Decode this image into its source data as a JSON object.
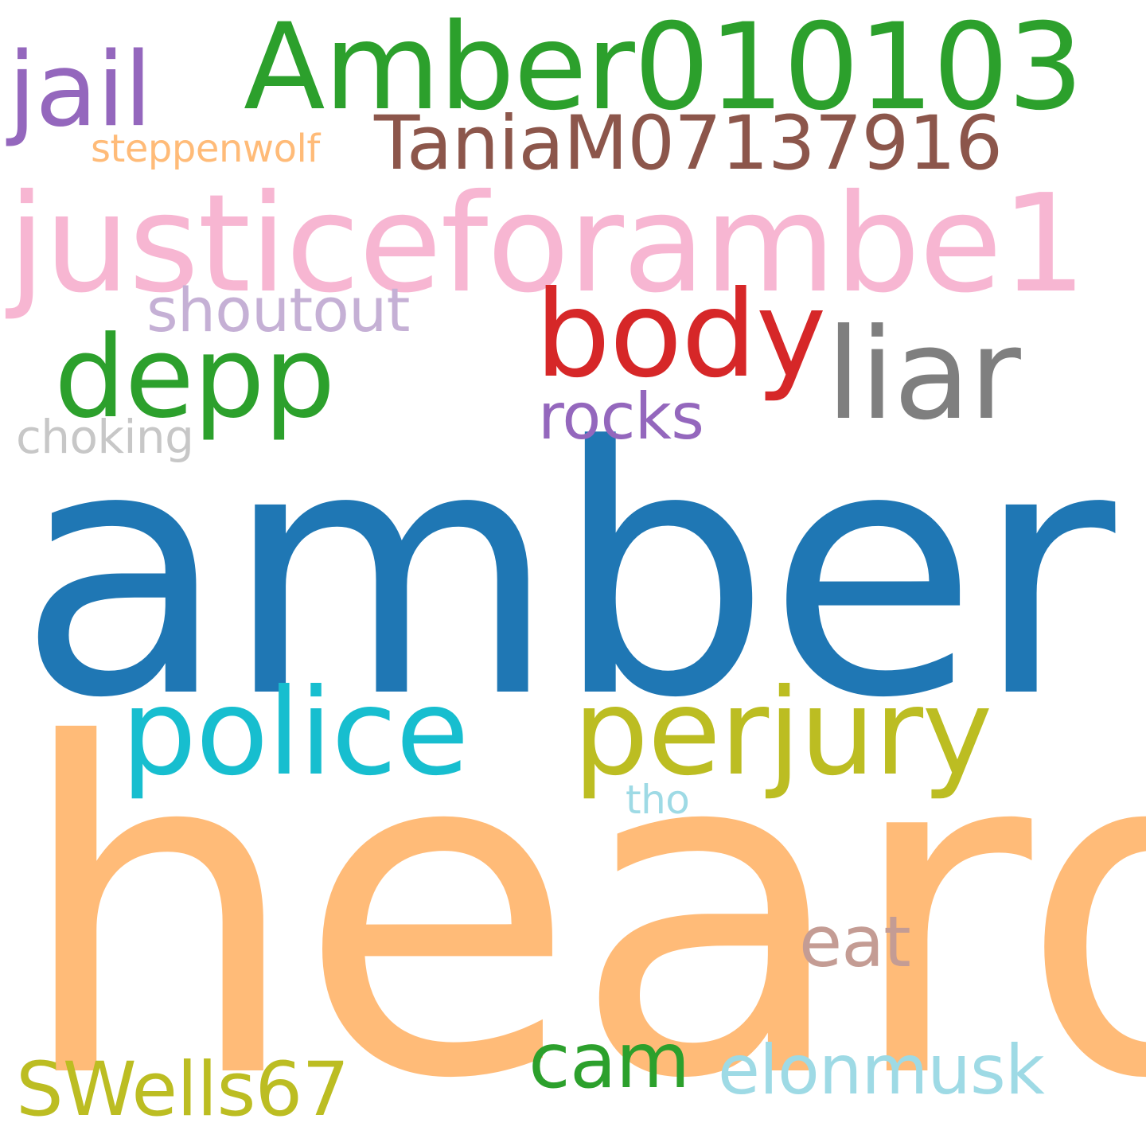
{
  "words": [
    {
      "text": "amber",
      "color": "#1f77b4"
    },
    {
      "text": "heard",
      "color": "#ffbb78"
    },
    {
      "text": "Amber010103",
      "color": "#2ca02c"
    },
    {
      "text": "justiceforambe1",
      "color": "#f7b6d2"
    },
    {
      "text": "body",
      "color": "#d62728"
    },
    {
      "text": "depp",
      "color": "#2ca02c"
    },
    {
      "text": "liar",
      "color": "#7f7f7f"
    },
    {
      "text": "police",
      "color": "#17becf"
    },
    {
      "text": "perjury",
      "color": "#bcbd22"
    },
    {
      "text": "jail",
      "color": "#9467bd"
    },
    {
      "text": "TaniaM07137916",
      "color": "#8c564b"
    },
    {
      "text": "cam",
      "color": "#2ca02c"
    },
    {
      "text": "SWells67",
      "color": "#bcbd22"
    },
    {
      "text": "elonmusk",
      "color": "#9edae5"
    },
    {
      "text": "eat",
      "color": "#c49c94"
    },
    {
      "text": "shoutout",
      "color": "#c5b0d5"
    },
    {
      "text": "rocks",
      "color": "#9467bd"
    },
    {
      "text": "choking",
      "color": "#c7c7c7"
    },
    {
      "text": "steppenwolf",
      "color": "#ffbb78"
    },
    {
      "text": "tho",
      "color": "#9edae5"
    }
  ]
}
